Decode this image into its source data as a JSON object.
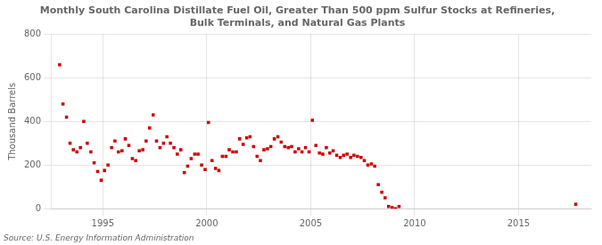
{
  "chart_data": {
    "type": "scatter",
    "title": "Monthly South Carolina Distillate Fuel Oil, Greater Than 500 ppm Sulfur Stocks at Refineries,\nBulk Terminals, and Natural Gas Plants",
    "ylabel": "Thousand Barrels",
    "annotations": [
      "Source: U.S. Energy Information Administration"
    ],
    "color": "#cc0000",
    "marker": "square",
    "grid": true,
    "xlim": [
      1992.5,
      2018.5
    ],
    "ylim": [
      0,
      800
    ],
    "xticks": [
      1995,
      2000,
      2005,
      2010,
      2015
    ],
    "yticks": [
      0,
      200,
      400,
      600,
      800
    ],
    "x": [
      1992.92,
      1993.08,
      1993.25,
      1993.42,
      1993.58,
      1993.75,
      1993.92,
      1994.08,
      1994.25,
      1994.42,
      1994.58,
      1994.75,
      1994.92,
      1995.08,
      1995.25,
      1995.42,
      1995.58,
      1995.75,
      1995.92,
      1996.08,
      1996.25,
      1996.42,
      1996.58,
      1996.75,
      1996.92,
      1997.08,
      1997.25,
      1997.42,
      1997.58,
      1997.75,
      1997.92,
      1998.08,
      1998.25,
      1998.42,
      1998.58,
      1998.75,
      1998.92,
      1999.08,
      1999.25,
      1999.42,
      1999.58,
      1999.75,
      1999.92,
      2000.08,
      2000.25,
      2000.42,
      2000.58,
      2000.75,
      2000.92,
      2001.08,
      2001.25,
      2001.42,
      2001.58,
      2001.75,
      2001.92,
      2002.08,
      2002.25,
      2002.42,
      2002.58,
      2002.75,
      2002.92,
      2003.08,
      2003.25,
      2003.42,
      2003.58,
      2003.75,
      2003.92,
      2004.08,
      2004.25,
      2004.42,
      2004.58,
      2004.75,
      2004.92,
      2005.08,
      2005.25,
      2005.42,
      2005.58,
      2005.75,
      2005.92,
      2006.08,
      2006.25,
      2006.42,
      2006.58,
      2006.75,
      2006.92,
      2007.08,
      2007.25,
      2007.42,
      2007.58,
      2007.75,
      2007.92,
      2008.08,
      2008.25,
      2008.42,
      2008.58,
      2008.75,
      2008.92,
      2009.08,
      2009.25,
      2017.75
    ],
    "values": [
      660,
      480,
      420,
      300,
      270,
      260,
      280,
      400,
      300,
      260,
      210,
      170,
      130,
      175,
      200,
      280,
      310,
      260,
      265,
      320,
      290,
      230,
      220,
      265,
      270,
      310,
      370,
      430,
      310,
      280,
      300,
      330,
      300,
      280,
      250,
      270,
      165,
      195,
      230,
      250,
      250,
      200,
      180,
      395,
      220,
      185,
      175,
      240,
      240,
      270,
      260,
      260,
      320,
      295,
      325,
      330,
      285,
      240,
      220,
      270,
      275,
      285,
      320,
      330,
      305,
      285,
      280,
      285,
      260,
      275,
      260,
      280,
      260,
      405,
      290,
      255,
      250,
      280,
      255,
      265,
      245,
      235,
      245,
      250,
      235,
      245,
      240,
      235,
      220,
      200,
      205,
      195,
      110,
      75,
      50,
      10,
      5,
      0,
      10,
      20
    ]
  }
}
